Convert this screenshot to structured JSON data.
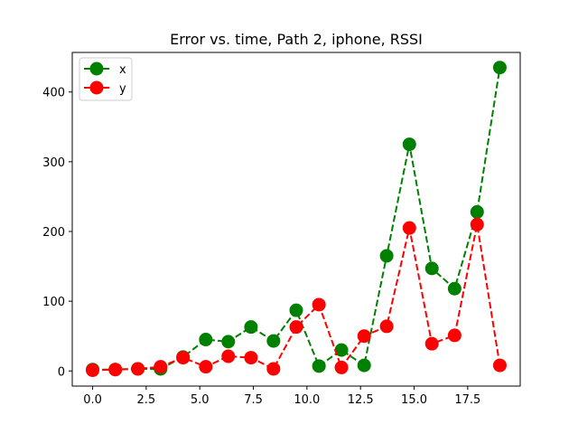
{
  "chart_data": {
    "type": "line",
    "title": "Error vs. time, Path 2, iphone, RSSI",
    "xlabel": "",
    "ylabel": "",
    "xlim": [
      -0.95,
      19.95
    ],
    "ylim": [
      -21.7,
      456.7
    ],
    "x_ticks": [
      0.0,
      2.5,
      5.0,
      7.5,
      10.0,
      12.5,
      15.0,
      17.5
    ],
    "x_tick_labels": [
      "0.0",
      "2.5",
      "5.0",
      "7.5",
      "10.0",
      "12.5",
      "15.0",
      "17.5"
    ],
    "y_ticks": [
      0,
      100,
      200,
      300,
      400
    ],
    "y_tick_labels": [
      "0",
      "100",
      "200",
      "300",
      "400"
    ],
    "grid": false,
    "legend": "top-left",
    "x": [
      0.0,
      1.06,
      2.11,
      3.17,
      4.22,
      5.28,
      6.33,
      7.39,
      8.44,
      9.5,
      10.56,
      11.61,
      12.67,
      13.72,
      14.78,
      15.83,
      16.89,
      17.94,
      19.0
    ],
    "series": [
      {
        "name": "x",
        "color": "#008000",
        "values": [
          2,
          2,
          3,
          3,
          20,
          45,
          42,
          63,
          43,
          87,
          7,
          30,
          8,
          165,
          325,
          147,
          118,
          228,
          435
        ]
      },
      {
        "name": "y",
        "color": "#ff0000",
        "values": [
          1,
          2,
          3,
          6,
          19,
          6,
          21,
          19,
          3,
          63,
          95,
          5,
          50,
          64,
          205,
          39,
          51,
          210,
          8
        ]
      }
    ]
  }
}
